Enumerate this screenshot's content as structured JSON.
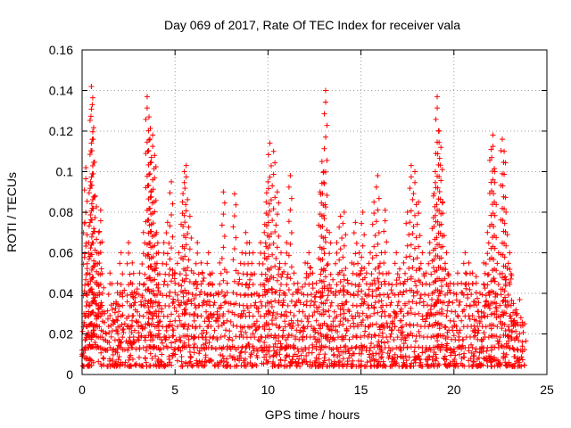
{
  "chart_data": {
    "type": "scatter",
    "title": "Day 069 of 2017, Rate Of TEC Index for receiver vala",
    "xlabel": "GPS time / hours",
    "ylabel": "ROTI / TECUs",
    "xlim": [
      0,
      24
    ],
    "ylim": [
      0,
      0.16
    ],
    "x_ticks": [
      0,
      5,
      10,
      15,
      20,
      25
    ],
    "x_tick_labels": [
      "0",
      "5",
      "10",
      "15",
      "20",
      "25"
    ],
    "y_ticks": [
      0,
      0.02,
      0.04,
      0.06,
      0.08,
      0.1,
      0.12,
      0.14,
      0.16
    ],
    "y_tick_labels": [
      "0",
      "0.02",
      "0.04",
      "0.06",
      "0.08",
      "0.1",
      "0.12",
      "0.14",
      "0.16"
    ],
    "grid": true,
    "marker": "+",
    "marker_color": "#ff0000",
    "series": [
      {
        "name": "ROTI",
        "x": [
          0.0,
          0.1,
          0.15,
          0.2,
          0.3,
          0.35,
          0.45,
          0.5,
          0.55,
          0.6,
          0.7,
          0.8,
          0.9,
          1.0,
          1.1,
          1.2,
          1.3,
          1.5,
          1.7,
          1.9,
          2.1,
          2.3,
          2.5,
          2.7,
          2.9,
          3.1,
          3.3,
          3.5,
          3.6,
          3.65,
          3.7,
          3.8,
          3.9,
          4.0,
          4.1,
          4.2,
          4.4,
          4.6,
          4.8,
          5.0,
          5.2,
          5.4,
          5.5,
          5.6,
          5.8,
          6.0,
          6.2,
          6.4,
          6.6,
          6.8,
          7.0,
          7.2,
          7.4,
          7.6,
          7.8,
          8.0,
          8.2,
          8.4,
          8.6,
          8.8,
          9.0,
          9.2,
          9.4,
          9.6,
          9.8,
          9.9,
          10.0,
          10.1,
          10.3,
          10.5,
          10.7,
          10.9,
          11.0,
          11.2,
          11.4,
          11.6,
          11.8,
          12.0,
          12.2,
          12.4,
          12.6,
          12.8,
          12.9,
          13.0,
          13.1,
          13.3,
          13.5,
          13.7,
          13.9,
          14.1,
          14.3,
          14.5,
          14.7,
          14.9,
          15.1,
          15.3,
          15.5,
          15.7,
          15.9,
          16.1,
          16.3,
          16.5,
          16.7,
          16.9,
          17.1,
          17.3,
          17.5,
          17.7,
          17.9,
          18.1,
          18.3,
          18.5,
          18.7,
          18.9,
          19.0,
          19.1,
          19.2,
          19.3,
          19.4,
          19.6,
          19.8,
          20.0,
          20.2,
          20.4,
          20.6,
          20.8,
          21.0,
          21.2,
          21.4,
          21.6,
          21.8,
          22.0,
          22.1,
          22.2,
          22.4,
          22.6,
          22.7,
          22.8,
          23.0,
          23.2,
          23.4,
          23.6,
          23.8
        ],
        "values": [
          0.012,
          0.03,
          0.075,
          0.102,
          0.05,
          0.065,
          0.095,
          0.142,
          0.133,
          0.116,
          0.088,
          0.06,
          0.07,
          0.081,
          0.04,
          0.03,
          0.02,
          0.05,
          0.035,
          0.045,
          0.06,
          0.025,
          0.065,
          0.055,
          0.04,
          0.05,
          0.07,
          0.137,
          0.127,
          0.116,
          0.09,
          0.118,
          0.108,
          0.07,
          0.06,
          0.04,
          0.065,
          0.075,
          0.095,
          0.045,
          0.06,
          0.085,
          0.1,
          0.103,
          0.078,
          0.05,
          0.065,
          0.055,
          0.04,
          0.06,
          0.05,
          0.04,
          0.055,
          0.09,
          0.045,
          0.035,
          0.089,
          0.05,
          0.06,
          0.07,
          0.065,
          0.06,
          0.04,
          0.065,
          0.07,
          0.085,
          0.095,
          0.114,
          0.11,
          0.09,
          0.06,
          0.04,
          0.065,
          0.098,
          0.05,
          0.045,
          0.04,
          0.055,
          0.06,
          0.05,
          0.045,
          0.09,
          0.105,
          0.1,
          0.14,
          0.07,
          0.04,
          0.065,
          0.078,
          0.08,
          0.045,
          0.055,
          0.075,
          0.06,
          0.08,
          0.05,
          0.06,
          0.085,
          0.098,
          0.06,
          0.081,
          0.05,
          0.04,
          0.06,
          0.045,
          0.055,
          0.08,
          0.103,
          0.1,
          0.085,
          0.06,
          0.05,
          0.065,
          0.088,
          0.1,
          0.137,
          0.12,
          0.112,
          0.085,
          0.06,
          0.045,
          0.04,
          0.05,
          0.045,
          0.06,
          0.055,
          0.05,
          0.045,
          0.04,
          0.055,
          0.07,
          0.111,
          0.118,
          0.1,
          0.06,
          0.116,
          0.11,
          0.08,
          0.06,
          0.035,
          0.03,
          0.028,
          0.025
        ]
      }
    ]
  }
}
